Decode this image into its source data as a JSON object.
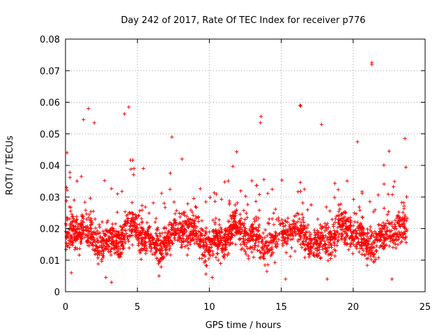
{
  "chart_data": {
    "type": "scatter",
    "title": "Day 242 of 2017, Rate Of TEC Index for receiver p776",
    "xlabel": "GPS time / hours",
    "ylabel": "ROTI / TECUs",
    "xlim": [
      0,
      25
    ],
    "ylim": [
      0,
      0.08
    ],
    "xticks": [
      0,
      5,
      10,
      15,
      20,
      25
    ],
    "xtick_labels": [
      "0",
      "5",
      "10",
      "15",
      "20",
      "25"
    ],
    "yticks": [
      0,
      0.01,
      0.02,
      0.03,
      0.04,
      0.05,
      0.06,
      0.07,
      0.08
    ],
    "ytick_labels": [
      "0",
      "0.01",
      "0.02",
      "0.03",
      "0.04",
      "0.05",
      "0.06",
      "0.07",
      "0.08"
    ],
    "grid": true,
    "marker": "+",
    "series_color": "#ff0000",
    "data_time_range": [
      0.0,
      23.75
    ],
    "bulk_range": [
      0.005,
      0.03
    ],
    "series": [
      {
        "name": "ROTI",
        "note": "dense point cloud; representative extreme points listed",
        "points": [
          [
            21.3,
            0.0725
          ],
          [
            21.3,
            0.072
          ],
          [
            16.3,
            0.059
          ],
          [
            16.35,
            0.0588
          ],
          [
            4.4,
            0.0585
          ],
          [
            1.6,
            0.058
          ],
          [
            4.1,
            0.0563
          ],
          [
            1.25,
            0.0545
          ],
          [
            2.0,
            0.0535
          ],
          [
            13.6,
            0.0555
          ],
          [
            13.55,
            0.0535
          ],
          [
            17.8,
            0.053
          ],
          [
            7.4,
            0.049
          ],
          [
            20.3,
            0.0475
          ],
          [
            23.6,
            0.0485
          ],
          [
            11.9,
            0.0443
          ],
          [
            22.5,
            0.0445
          ],
          [
            0.1,
            0.044
          ],
          [
            8.1,
            0.042
          ],
          [
            2.8,
            0.0045
          ],
          [
            6.5,
            0.005
          ],
          [
            15.3,
            0.004
          ],
          [
            18.2,
            0.004
          ],
          [
            10.2,
            0.0045
          ],
          [
            22.7,
            0.004
          ],
          [
            0.4,
            0.006
          ],
          [
            3.2,
            0.003
          ]
        ]
      }
    ]
  }
}
